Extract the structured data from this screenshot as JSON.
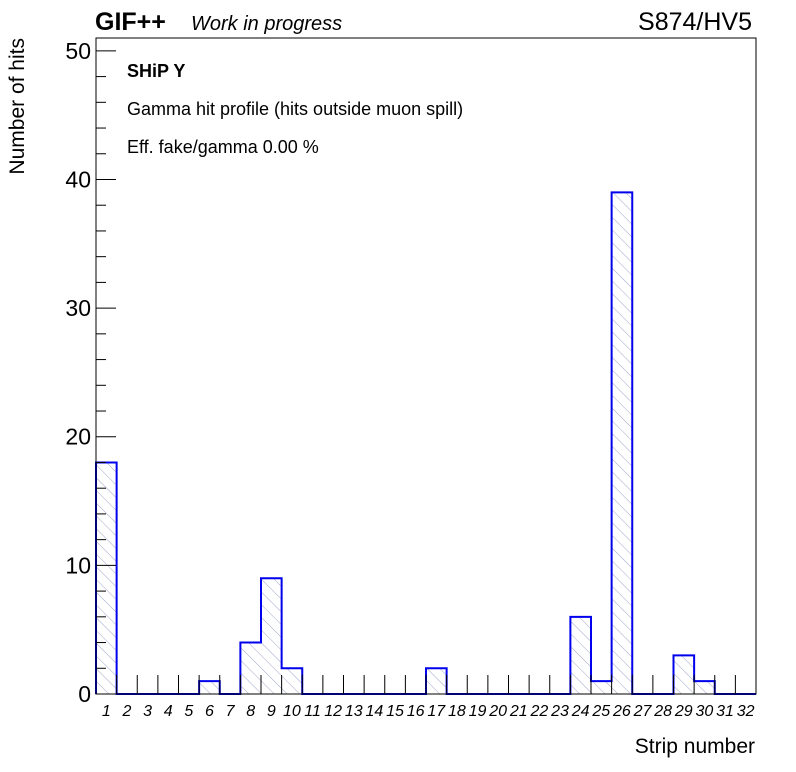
{
  "header": {
    "brand": "GIF++",
    "status": "Work in progress",
    "run_label": "S874/HV5"
  },
  "annotations": {
    "detector": "SHiP Y",
    "profile_title": "Gamma hit profile (hits outside muon spill)",
    "efficiency": "Eff. fake/gamma 0.00 %"
  },
  "chart_data": {
    "type": "bar",
    "title": "Gamma hit profile (hits outside muon spill)",
    "xlabel": "Strip number",
    "ylabel": "Number of hits",
    "categories": [
      "1",
      "2",
      "3",
      "4",
      "5",
      "6",
      "7",
      "8",
      "9",
      "10",
      "11",
      "12",
      "13",
      "14",
      "15",
      "16",
      "17",
      "18",
      "19",
      "20",
      "21",
      "22",
      "23",
      "24",
      "25",
      "26",
      "27",
      "28",
      "29",
      "30",
      "31",
      "32"
    ],
    "values": [
      18,
      0,
      0,
      0,
      0,
      1,
      0,
      4,
      9,
      2,
      0,
      0,
      0,
      0,
      0,
      0,
      2,
      0,
      0,
      0,
      0,
      0,
      0,
      6,
      1,
      39,
      0,
      0,
      3,
      1,
      0,
      0
    ],
    "ylim": [
      0,
      51
    ],
    "y_major_ticks": [
      0,
      10,
      20,
      30,
      40,
      50
    ],
    "y_minor_step": 2,
    "grid": false,
    "legend": "none",
    "colors": {
      "line": "#0000ee",
      "hatch": "#a0a8c8",
      "frame": "#000000"
    }
  }
}
